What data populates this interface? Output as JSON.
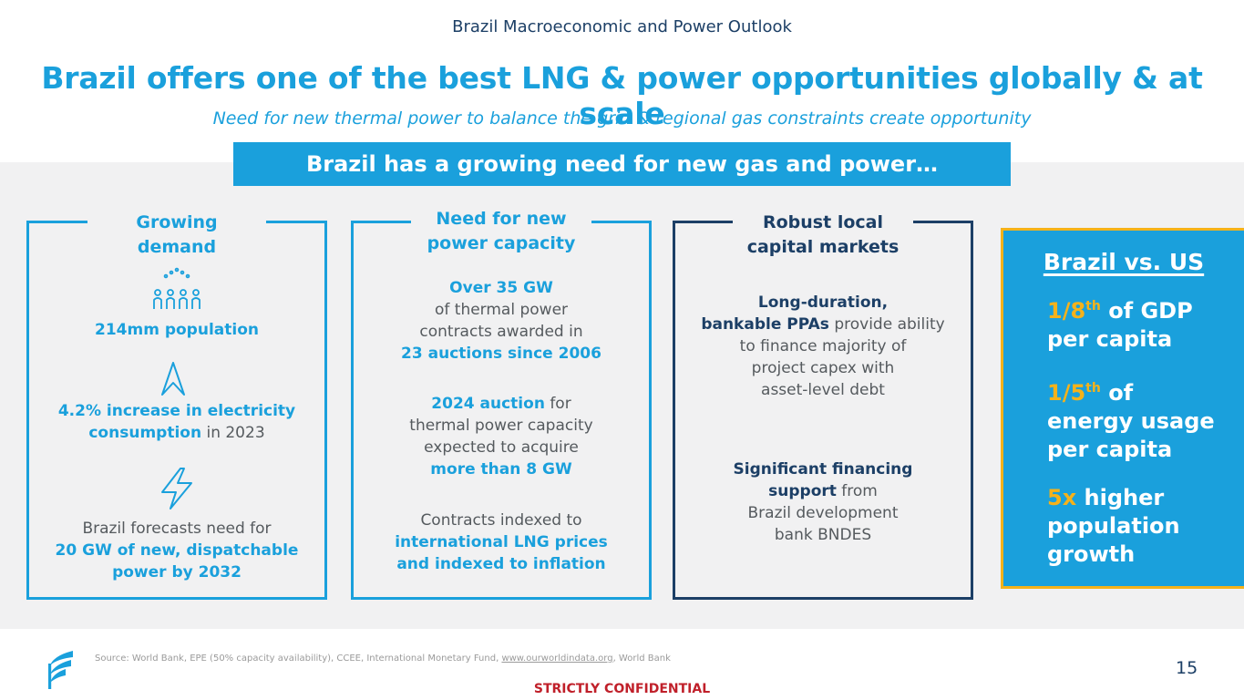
{
  "header": {
    "section": "Brazil Macroeconomic and Power Outlook",
    "title": "Brazil offers one of the best LNG & power opportunities globally & at scale",
    "subtitle": "Need for new thermal power to balance the grid & regional gas constraints create opportunity",
    "banner": "Brazil has a growing need for new gas and power…"
  },
  "panels": {
    "demand": {
      "title_line1": "Growing",
      "title_line2": "demand",
      "population": "214mm population",
      "elec_line1": "4.2% increase in electricity",
      "elec_bold2": "consumption",
      "elec_rest2": " in 2023",
      "forecast_line1": "Brazil forecasts need for",
      "forecast_line2": "20 GW of new, dispatchable",
      "forecast_line3": "power by 2032"
    },
    "capacity": {
      "title_line1": "Need for new",
      "title_line2": "power capacity",
      "gw_bold": "Over 35 GW",
      "gw_line2": "of thermal power",
      "gw_line3": "contracts awarded in",
      "gw_bold4": "23 auctions since 2006",
      "auction_bold": "2024 auction",
      "auction_rest1": " for",
      "auction_line2": "thermal power capacity",
      "auction_line3": "expected to acquire",
      "auction_bold4": "more than 8 GW",
      "contracts_line1": "Contracts indexed to",
      "contracts_bold2": "international LNG prices",
      "contracts_bold3": "and indexed to inflation"
    },
    "capital": {
      "title_line1": "Robust local",
      "title_line2": "capital markets",
      "ppa_bold1": "Long-duration,",
      "ppa_bold2": "bankable PPAs",
      "ppa_rest2": " provide ability",
      "ppa_line3": "to finance majority of",
      "ppa_line4": "project capex with",
      "ppa_line5": "asset-level debt",
      "fin_bold1": "Significant financing",
      "fin_bold2": "support",
      "fin_rest2": " from",
      "fin_line3": "Brazil development",
      "fin_line4": "bank BNDES"
    }
  },
  "us_compare": {
    "title": "Brazil vs. US",
    "s1_hl": "1/8",
    "s1_sup": "th",
    "s1_rest": " of GDP",
    "s1_line2": "per capita",
    "s2_hl": "1/5",
    "s2_sup": "th",
    "s2_rest": " of",
    "s2_line2": "energy usage",
    "s2_line3": "per capita",
    "s3_hl": "5x",
    "s3_rest": " higher",
    "s3_line2": "population",
    "s3_line3": "growth"
  },
  "footer": {
    "source_prefix": "Source: World Bank, EPE (50% capacity availability), CCEE, International Monetary Fund, ",
    "source_link": "www.ourworldindata.org",
    "source_suffix": ", World Bank",
    "page_number": "15",
    "confidential": "STRICTLY CONFIDENTIAL"
  },
  "icons": {
    "people": "people-group-icon",
    "arrow": "arrow-up-icon",
    "bolt": "lightning-bolt-icon",
    "logo": "company-logo-icon"
  },
  "colors": {
    "accent": "#1aa0dc",
    "navy": "#1c3f66",
    "gold": "#f5b21a",
    "confidential": "#c0202a"
  }
}
